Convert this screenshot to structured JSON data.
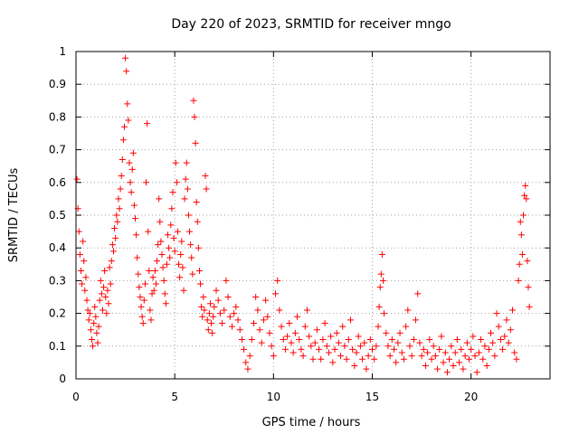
{
  "chart_data": {
    "type": "scatter",
    "title": "Day 220 of 2023, SRMTID for receiver mngo",
    "xlabel": "GPS time / hours",
    "ylabel": "SRMTID / TECUs",
    "xlim": [
      0,
      24
    ],
    "ylim": [
      0,
      1
    ],
    "xticks": [
      0,
      5,
      10,
      15,
      20
    ],
    "xtick_labels": [
      "0",
      "5",
      "10",
      "15",
      "20"
    ],
    "yticks": [
      0,
      0.1,
      0.2,
      0.3,
      0.4,
      0.5,
      0.6,
      0.7,
      0.8,
      0.9,
      1
    ],
    "ytick_labels": [
      "0",
      "0.1",
      "0.2",
      "0.3",
      "0.4",
      "0.5",
      "0.6",
      "0.7",
      "0.8",
      "0.9",
      "1"
    ],
    "grid": true,
    "marker": "+",
    "color": "#ff0000",
    "series": [
      {
        "name": "SRMTID",
        "points": [
          [
            0.05,
            0.61
          ],
          [
            0.1,
            0.52
          ],
          [
            0.15,
            0.45
          ],
          [
            0.2,
            0.38
          ],
          [
            0.25,
            0.33
          ],
          [
            0.3,
            0.29
          ],
          [
            0.35,
            0.42
          ],
          [
            0.4,
            0.36
          ],
          [
            0.45,
            0.27
          ],
          [
            0.5,
            0.31
          ],
          [
            0.55,
            0.24
          ],
          [
            0.6,
            0.21
          ],
          [
            0.65,
            0.18
          ],
          [
            0.7,
            0.2
          ],
          [
            0.75,
            0.15
          ],
          [
            0.8,
            0.12
          ],
          [
            0.85,
            0.1
          ],
          [
            0.9,
            0.17
          ],
          [
            0.95,
            0.22
          ],
          [
            1.0,
            0.19
          ],
          [
            1.05,
            0.14
          ],
          [
            1.1,
            0.11
          ],
          [
            1.15,
            0.16
          ],
          [
            1.2,
            0.24
          ],
          [
            1.25,
            0.3
          ],
          [
            1.3,
            0.26
          ],
          [
            1.35,
            0.21
          ],
          [
            1.4,
            0.28
          ],
          [
            1.45,
            0.33
          ],
          [
            1.5,
            0.25
          ],
          [
            1.55,
            0.2
          ],
          [
            1.6,
            0.27
          ],
          [
            1.65,
            0.23
          ],
          [
            1.7,
            0.34
          ],
          [
            1.75,
            0.29
          ],
          [
            1.8,
            0.36
          ],
          [
            1.85,
            0.41
          ],
          [
            1.9,
            0.39
          ],
          [
            1.95,
            0.46
          ],
          [
            2.0,
            0.43
          ],
          [
            2.05,
            0.5
          ],
          [
            2.1,
            0.48
          ],
          [
            2.15,
            0.55
          ],
          [
            2.2,
            0.52
          ],
          [
            2.25,
            0.58
          ],
          [
            2.3,
            0.62
          ],
          [
            2.35,
            0.67
          ],
          [
            2.4,
            0.73
          ],
          [
            2.45,
            0.77
          ],
          [
            2.5,
            0.98
          ],
          [
            2.55,
            0.94
          ],
          [
            2.6,
            0.84
          ],
          [
            2.65,
            0.79
          ],
          [
            2.7,
            0.66
          ],
          [
            2.75,
            0.6
          ],
          [
            2.8,
            0.57
          ],
          [
            2.85,
            0.64
          ],
          [
            2.9,
            0.69
          ],
          [
            2.95,
            0.53
          ],
          [
            3.0,
            0.49
          ],
          [
            3.05,
            0.44
          ],
          [
            3.1,
            0.37
          ],
          [
            3.15,
            0.32
          ],
          [
            3.2,
            0.28
          ],
          [
            3.25,
            0.25
          ],
          [
            3.3,
            0.22
          ],
          [
            3.35,
            0.19
          ],
          [
            3.4,
            0.17
          ],
          [
            3.45,
            0.24
          ],
          [
            3.5,
            0.29
          ],
          [
            3.55,
            0.6
          ],
          [
            3.6,
            0.78
          ],
          [
            3.65,
            0.45
          ],
          [
            3.7,
            0.33
          ],
          [
            3.75,
            0.21
          ],
          [
            3.8,
            0.18
          ],
          [
            3.85,
            0.26
          ],
          [
            3.9,
            0.31
          ],
          [
            3.95,
            0.27
          ],
          [
            4.0,
            0.33
          ],
          [
            4.05,
            0.29
          ],
          [
            4.1,
            0.36
          ],
          [
            4.15,
            0.41
          ],
          [
            4.2,
            0.55
          ],
          [
            4.25,
            0.48
          ],
          [
            4.3,
            0.42
          ],
          [
            4.35,
            0.38
          ],
          [
            4.4,
            0.34
          ],
          [
            4.45,
            0.3
          ],
          [
            4.5,
            0.26
          ],
          [
            4.55,
            0.23
          ],
          [
            4.6,
            0.35
          ],
          [
            4.65,
            0.44
          ],
          [
            4.7,
            0.4
          ],
          [
            4.75,
            0.37
          ],
          [
            4.8,
            0.47
          ],
          [
            4.85,
            0.52
          ],
          [
            4.9,
            0.57
          ],
          [
            4.95,
            0.43
          ],
          [
            5.0,
            0.39
          ],
          [
            5.05,
            0.66
          ],
          [
            5.1,
            0.6
          ],
          [
            5.15,
            0.45
          ],
          [
            5.2,
            0.35
          ],
          [
            5.25,
            0.31
          ],
          [
            5.3,
            0.38
          ],
          [
            5.35,
            0.42
          ],
          [
            5.4,
            0.34
          ],
          [
            5.45,
            0.27
          ],
          [
            5.5,
            0.55
          ],
          [
            5.55,
            0.61
          ],
          [
            5.6,
            0.66
          ],
          [
            5.65,
            0.58
          ],
          [
            5.7,
            0.5
          ],
          [
            5.75,
            0.45
          ],
          [
            5.8,
            0.41
          ],
          [
            5.85,
            0.37
          ],
          [
            5.9,
            0.32
          ],
          [
            5.95,
            0.85
          ],
          [
            6.0,
            0.8
          ],
          [
            6.05,
            0.72
          ],
          [
            6.1,
            0.54
          ],
          [
            6.15,
            0.48
          ],
          [
            6.2,
            0.4
          ],
          [
            6.25,
            0.33
          ],
          [
            6.3,
            0.29
          ],
          [
            6.35,
            0.22
          ],
          [
            6.4,
            0.19
          ],
          [
            6.45,
            0.25
          ],
          [
            6.5,
            0.21
          ],
          [
            6.55,
            0.62
          ],
          [
            6.6,
            0.58
          ],
          [
            6.65,
            0.18
          ],
          [
            6.7,
            0.15
          ],
          [
            6.75,
            0.2
          ],
          [
            6.8,
            0.23
          ],
          [
            6.85,
            0.17
          ],
          [
            6.9,
            0.14
          ],
          [
            6.95,
            0.19
          ],
          [
            7.0,
            0.22
          ],
          [
            7.1,
            0.27
          ],
          [
            7.2,
            0.24
          ],
          [
            7.3,
            0.2
          ],
          [
            7.4,
            0.17
          ],
          [
            7.5,
            0.21
          ],
          [
            7.6,
            0.3
          ],
          [
            7.7,
            0.25
          ],
          [
            7.8,
            0.19
          ],
          [
            7.9,
            0.16
          ],
          [
            8.0,
            0.2
          ],
          [
            8.1,
            0.22
          ],
          [
            8.2,
            0.18
          ],
          [
            8.3,
            0.15
          ],
          [
            8.4,
            0.12
          ],
          [
            8.5,
            0.09
          ],
          [
            8.6,
            0.05
          ],
          [
            8.7,
            0.03
          ],
          [
            8.8,
            0.07
          ],
          [
            8.9,
            0.12
          ],
          [
            9.0,
            0.17
          ],
          [
            9.1,
            0.25
          ],
          [
            9.2,
            0.21
          ],
          [
            9.3,
            0.15
          ],
          [
            9.4,
            0.11
          ],
          [
            9.5,
            0.18
          ],
          [
            9.6,
            0.24
          ],
          [
            9.7,
            0.19
          ],
          [
            9.8,
            0.14
          ],
          [
            9.9,
            0.1
          ],
          [
            10.0,
            0.07
          ],
          [
            10.1,
            0.26
          ],
          [
            10.2,
            0.3
          ],
          [
            10.3,
            0.21
          ],
          [
            10.4,
            0.16
          ],
          [
            10.5,
            0.12
          ],
          [
            10.6,
            0.09
          ],
          [
            10.7,
            0.13
          ],
          [
            10.8,
            0.17
          ],
          [
            10.9,
            0.11
          ],
          [
            11.0,
            0.08
          ],
          [
            11.1,
            0.14
          ],
          [
            11.2,
            0.19
          ],
          [
            11.3,
            0.12
          ],
          [
            11.4,
            0.09
          ],
          [
            11.5,
            0.07
          ],
          [
            11.6,
            0.16
          ],
          [
            11.7,
            0.21
          ],
          [
            11.8,
            0.13
          ],
          [
            11.9,
            0.1
          ],
          [
            12.0,
            0.06
          ],
          [
            12.1,
            0.11
          ],
          [
            12.2,
            0.15
          ],
          [
            12.3,
            0.09
          ],
          [
            12.4,
            0.06
          ],
          [
            12.5,
            0.12
          ],
          [
            12.6,
            0.17
          ],
          [
            12.7,
            0.1
          ],
          [
            12.8,
            0.08
          ],
          [
            12.9,
            0.13
          ],
          [
            13.0,
            0.05
          ],
          [
            13.1,
            0.09
          ],
          [
            13.2,
            0.14
          ],
          [
            13.3,
            0.11
          ],
          [
            13.4,
            0.07
          ],
          [
            13.5,
            0.16
          ],
          [
            13.6,
            0.1
          ],
          [
            13.7,
            0.06
          ],
          [
            13.8,
            0.12
          ],
          [
            13.9,
            0.18
          ],
          [
            14.0,
            0.09
          ],
          [
            14.1,
            0.04
          ],
          [
            14.2,
            0.08
          ],
          [
            14.3,
            0.13
          ],
          [
            14.4,
            0.1
          ],
          [
            14.5,
            0.06
          ],
          [
            14.6,
            0.11
          ],
          [
            14.7,
            0.03
          ],
          [
            14.8,
            0.07
          ],
          [
            14.9,
            0.12
          ],
          [
            15.0,
            0.09
          ],
          [
            15.1,
            0.06
          ],
          [
            15.2,
            0.1
          ],
          [
            15.3,
            0.16
          ],
          [
            15.35,
            0.22
          ],
          [
            15.4,
            0.28
          ],
          [
            15.45,
            0.32
          ],
          [
            15.5,
            0.38
          ],
          [
            15.55,
            0.3
          ],
          [
            15.6,
            0.2
          ],
          [
            15.7,
            0.14
          ],
          [
            15.8,
            0.1
          ],
          [
            15.9,
            0.07
          ],
          [
            16.0,
            0.12
          ],
          [
            16.1,
            0.09
          ],
          [
            16.2,
            0.05
          ],
          [
            16.3,
            0.11
          ],
          [
            16.4,
            0.14
          ],
          [
            16.5,
            0.08
          ],
          [
            16.6,
            0.06
          ],
          [
            16.7,
            0.16
          ],
          [
            16.8,
            0.21
          ],
          [
            16.9,
            0.1
          ],
          [
            17.0,
            0.07
          ],
          [
            17.1,
            0.12
          ],
          [
            17.2,
            0.18
          ],
          [
            17.3,
            0.26
          ],
          [
            17.4,
            0.11
          ],
          [
            17.5,
            0.07
          ],
          [
            17.6,
            0.09
          ],
          [
            17.7,
            0.04
          ],
          [
            17.8,
            0.08
          ],
          [
            17.9,
            0.12
          ],
          [
            18.0,
            0.06
          ],
          [
            18.1,
            0.1
          ],
          [
            18.2,
            0.07
          ],
          [
            18.3,
            0.03
          ],
          [
            18.4,
            0.09
          ],
          [
            18.5,
            0.13
          ],
          [
            18.6,
            0.05
          ],
          [
            18.7,
            0.08
          ],
          [
            18.8,
            0.02
          ],
          [
            18.9,
            0.06
          ],
          [
            19.0,
            0.1
          ],
          [
            19.1,
            0.04
          ],
          [
            19.2,
            0.08
          ],
          [
            19.3,
            0.12
          ],
          [
            19.4,
            0.05
          ],
          [
            19.5,
            0.09
          ],
          [
            19.6,
            0.03
          ],
          [
            19.7,
            0.07
          ],
          [
            19.8,
            0.11
          ],
          [
            19.9,
            0.06
          ],
          [
            20.0,
            0.09
          ],
          [
            20.1,
            0.13
          ],
          [
            20.2,
            0.07
          ],
          [
            20.3,
            0.02
          ],
          [
            20.4,
            0.08
          ],
          [
            20.5,
            0.12
          ],
          [
            20.6,
            0.06
          ],
          [
            20.7,
            0.1
          ],
          [
            20.8,
            0.04
          ],
          [
            20.9,
            0.09
          ],
          [
            21.0,
            0.14
          ],
          [
            21.1,
            0.11
          ],
          [
            21.2,
            0.07
          ],
          [
            21.3,
            0.2
          ],
          [
            21.4,
            0.16
          ],
          [
            21.5,
            0.12
          ],
          [
            21.6,
            0.09
          ],
          [
            21.7,
            0.13
          ],
          [
            21.8,
            0.18
          ],
          [
            21.9,
            0.11
          ],
          [
            22.0,
            0.15
          ],
          [
            22.1,
            0.21
          ],
          [
            22.2,
            0.08
          ],
          [
            22.3,
            0.06
          ],
          [
            22.4,
            0.3
          ],
          [
            22.45,
            0.35
          ],
          [
            22.5,
            0.48
          ],
          [
            22.55,
            0.44
          ],
          [
            22.6,
            0.38
          ],
          [
            22.65,
            0.5
          ],
          [
            22.7,
            0.56
          ],
          [
            22.75,
            0.59
          ],
          [
            22.8,
            0.55
          ],
          [
            22.85,
            0.36
          ],
          [
            22.9,
            0.28
          ],
          [
            22.95,
            0.22
          ]
        ]
      }
    ]
  }
}
